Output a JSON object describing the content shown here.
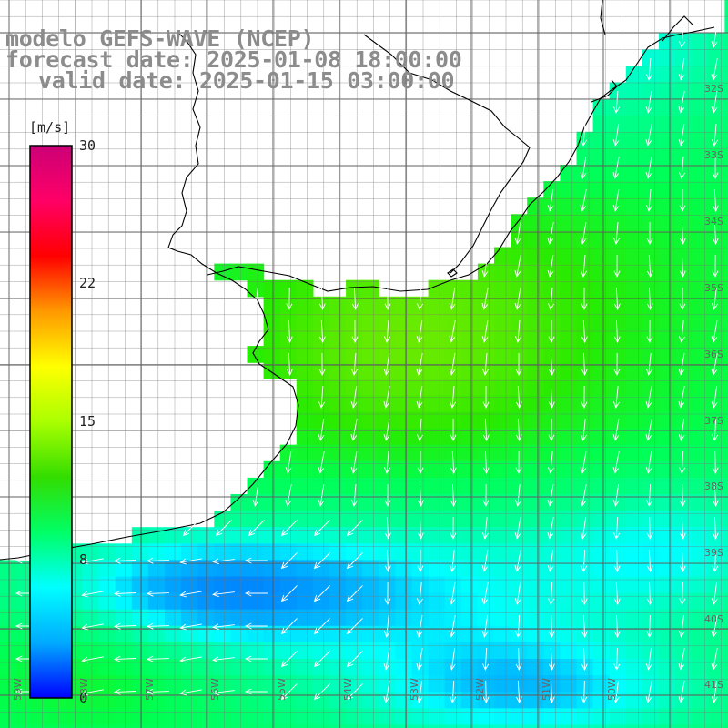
{
  "title": {
    "line1": "modelo GEFS-WAVE (NCEP)",
    "line2": "forecast date: 2025-01-08 18:00:00",
    "line3": "valid date: 2025-01-15 03:00:00"
  },
  "colorbar": {
    "units": "[m/s]",
    "ticks": [
      "30",
      "22",
      "15",
      "8",
      "0"
    ],
    "range": [
      0,
      30
    ],
    "colors": [
      "#0000ff",
      "#00aaff",
      "#00ffff",
      "#00ff66",
      "#33dd00",
      "#aaff00",
      "#ffff00",
      "#ff9900",
      "#ff0000",
      "#ff0066",
      "#cc0077"
    ]
  },
  "lat_labels": [
    "32S",
    "33S",
    "34S",
    "35S",
    "36S",
    "37S",
    "38S",
    "39S",
    "40S",
    "41S"
  ],
  "lon_labels": [
    "59W",
    "58W",
    "57W",
    "56W",
    "55W",
    "54W",
    "53W",
    "52W",
    "51W",
    "50W"
  ],
  "field": {
    "variable": "wind speed",
    "units": "m/s"
  }
}
